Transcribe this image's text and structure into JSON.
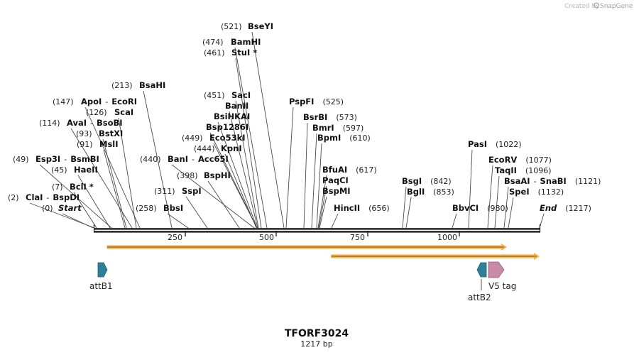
{
  "credit": {
    "prefix": "Created by",
    "brand": "SnapGene"
  },
  "map": {
    "title": "TFORF3024",
    "length_label": "1217 bp",
    "total_bp": 1217
  },
  "ruler_ticks": [
    "250",
    "500",
    "750",
    "1000"
  ],
  "sites": [
    {
      "pos": "(0)",
      "names": [
        "Start"
      ],
      "end_marker": true
    },
    {
      "pos": "(2)",
      "names": [
        "ClaI",
        "BspDI"
      ]
    },
    {
      "pos": "(7)",
      "names": [
        "BclI *"
      ]
    },
    {
      "pos": "(45)",
      "names": [
        "HaeII"
      ]
    },
    {
      "pos": "(49)",
      "names": [
        "Esp3I",
        "BsmBI"
      ]
    },
    {
      "pos": "(91)",
      "names": [
        "MslI"
      ]
    },
    {
      "pos": "(93)",
      "names": [
        "BstXI"
      ]
    },
    {
      "pos": "(114)",
      "names": [
        "AvaI",
        "BsoBI"
      ]
    },
    {
      "pos": "(126)",
      "names": [
        "ScaI"
      ]
    },
    {
      "pos": "(147)",
      "names": [
        "ApoI",
        "EcoRI"
      ]
    },
    {
      "pos": "(213)",
      "names": [
        "BsaHI"
      ]
    },
    {
      "pos": "(258)",
      "names": [
        "BbsI"
      ]
    },
    {
      "pos": "(311)",
      "names": [
        "SspI"
      ]
    },
    {
      "pos": "(398)",
      "names": [
        "BspHI"
      ]
    },
    {
      "pos": "(440)",
      "names": [
        "BanI",
        "Acc65I"
      ]
    },
    {
      "pos": "(444)",
      "names": [
        "KpnI"
      ]
    },
    {
      "pos": "(449)",
      "names": [
        "Eco53kI"
      ]
    },
    {
      "pos": "",
      "names": [
        "Bsp1286I"
      ]
    },
    {
      "pos": "",
      "names": [
        "BsiHKAI"
      ]
    },
    {
      "pos": "",
      "names": [
        "BanII"
      ]
    },
    {
      "pos": "(451)",
      "names": [
        "SacI"
      ]
    },
    {
      "pos": "(461)",
      "names": [
        "StuI *"
      ]
    },
    {
      "pos": "(474)",
      "names": [
        "BamHI"
      ]
    },
    {
      "pos": "(521)",
      "names": [
        "BseYI"
      ]
    },
    {
      "pos": "(525)",
      "names": [
        "PspFI"
      ]
    },
    {
      "pos": "(573)",
      "names": [
        "BsrBI"
      ]
    },
    {
      "pos": "(597)",
      "names": [
        "BmrI"
      ]
    },
    {
      "pos": "(610)",
      "names": [
        "BpmI"
      ]
    },
    {
      "pos": "(617)",
      "names": [
        "BfuAI"
      ]
    },
    {
      "pos": "",
      "names": [
        "PaqCI"
      ]
    },
    {
      "pos": "",
      "names": [
        "BspMI"
      ]
    },
    {
      "pos": "(656)",
      "names": [
        "HincII"
      ]
    },
    {
      "pos": "(842)",
      "names": [
        "BsgI"
      ]
    },
    {
      "pos": "(853)",
      "names": [
        "BglI"
      ]
    },
    {
      "pos": "(980)",
      "names": [
        "BbvCI"
      ]
    },
    {
      "pos": "(1022)",
      "names": [
        "PasI"
      ]
    },
    {
      "pos": "(1077)",
      "names": [
        "EcoRV"
      ]
    },
    {
      "pos": "(1096)",
      "names": [
        "TaqII"
      ]
    },
    {
      "pos": "(1121)",
      "names": [
        "BsaAI",
        "SnaBI"
      ]
    },
    {
      "pos": "(1132)",
      "names": [
        "SpeI"
      ]
    },
    {
      "pos": "(1217)",
      "names": [
        "End"
      ],
      "end_marker": true
    }
  ],
  "features": [
    {
      "name": "attB1",
      "direction": "forward",
      "color": "#2e7f97"
    },
    {
      "name": "attB2",
      "direction": "reverse",
      "color": "#2e7f97"
    },
    {
      "name": "V5 tag",
      "direction": "forward",
      "color": "#c98aa8"
    }
  ],
  "orfs": [
    {
      "name": "orf-1",
      "start_bp": 36,
      "end_bp": 1128,
      "color": "#f0a830"
    },
    {
      "name": "orf-2",
      "start_bp": 648,
      "end_bp": 1217,
      "color": "#f0a830"
    }
  ],
  "colors": {
    "backbone": "#1a1a1a",
    "leader": "#444444",
    "orf_fill": "#f0a830",
    "orf_core": "#8a4a00"
  }
}
